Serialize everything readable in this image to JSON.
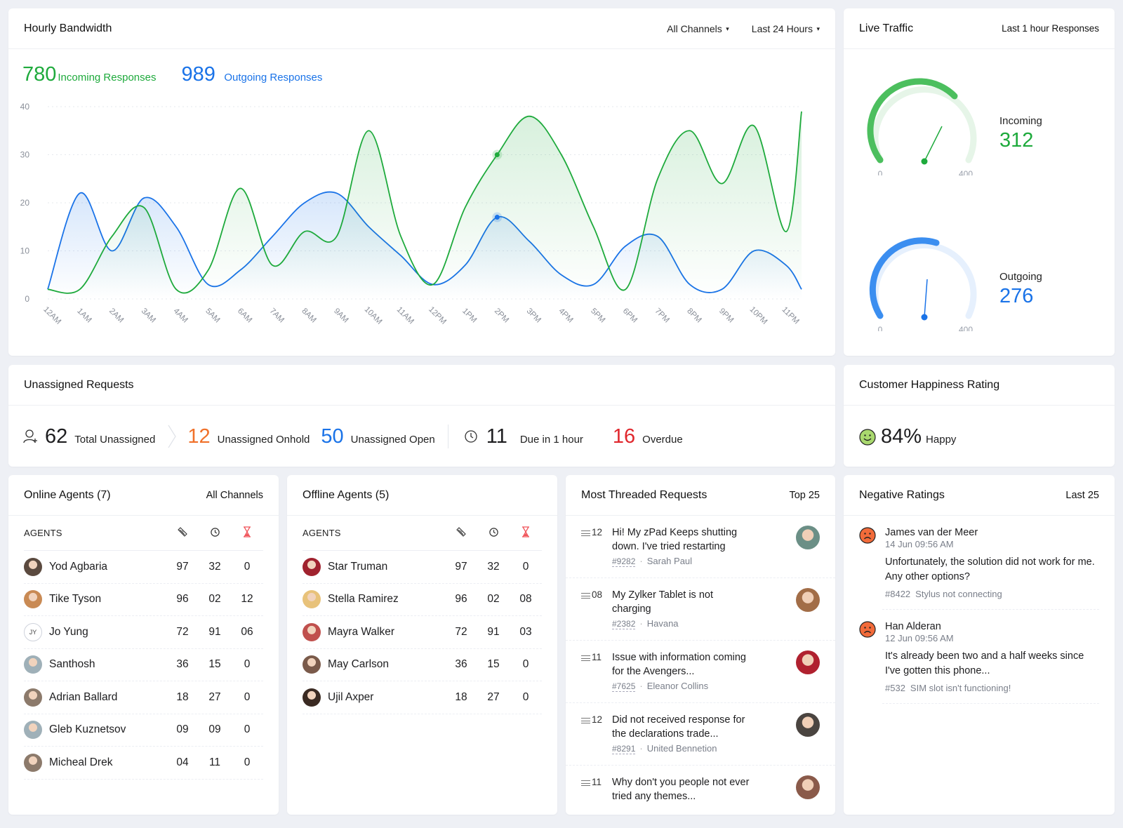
{
  "bandwidth": {
    "title": "Hourly Bandwidth",
    "filters": {
      "channel": "All Channels",
      "range": "Last 24 Hours"
    },
    "incoming": {
      "value": "780",
      "label": "Incoming Responses"
    },
    "outgoing": {
      "value": "989",
      "label": "Outgoing Responses"
    }
  },
  "chart_data": {
    "type": "area",
    "title": "Hourly Bandwidth",
    "xlabel": "",
    "ylabel": "",
    "ylim": [
      0,
      40
    ],
    "yticks": [
      0,
      10,
      20,
      30,
      40
    ],
    "grid": true,
    "categories": [
      "12AM",
      "1AM",
      "2AM",
      "3AM",
      "4AM",
      "5AM",
      "6AM",
      "7AM",
      "8AM",
      "9AM",
      "10AM",
      "11AM",
      "12PM",
      "1PM",
      "2PM",
      "3PM",
      "4PM",
      "5PM",
      "6PM",
      "7PM",
      "8PM",
      "9PM",
      "10PM",
      "11PM"
    ],
    "series": [
      {
        "name": "Incoming Responses",
        "color": "#1eaa3c",
        "values": [
          2,
          2,
          13,
          19,
          2,
          6,
          23,
          7,
          14,
          13,
          35,
          13,
          3,
          19,
          30,
          38,
          30,
          15,
          2,
          25,
          35,
          24,
          36,
          14
        ]
      },
      {
        "name": "Outgoing Responses",
        "color": "#1a73e8",
        "values": [
          2,
          22,
          10,
          21,
          15,
          3,
          6,
          13,
          20,
          22,
          15,
          9,
          3,
          7,
          17,
          12,
          5,
          3,
          11,
          13,
          3,
          2,
          10,
          7
        ]
      }
    ],
    "end_value_incoming": 39,
    "end_value_outgoing": 2,
    "highlight": {
      "x": "2PM",
      "incoming": 30,
      "outgoing": 17
    }
  },
  "live": {
    "title": "Live Traffic",
    "subtitle": "Last 1 hour Responses",
    "incoming": {
      "label": "Incoming",
      "value": "312",
      "min": "0",
      "max": "400"
    },
    "outgoing": {
      "label": "Outgoing",
      "value": "276",
      "min": "0",
      "max": "400"
    }
  },
  "unassigned": {
    "title": "Unassigned Requests",
    "total": {
      "value": "62",
      "label": "Total Unassigned"
    },
    "onhold": {
      "value": "12",
      "label": "Unassigned Onhold"
    },
    "open": {
      "value": "50",
      "label": "Unassigned Open"
    },
    "due": {
      "value": "11",
      "label": "Due in 1 hour"
    },
    "overdue": {
      "value": "16",
      "label": "Overdue"
    }
  },
  "happiness": {
    "title": "Customer Happiness Rating",
    "value": "84%",
    "label": "Happy"
  },
  "online_agents": {
    "title": "Online Agents (7)",
    "filter": "All Channels",
    "col_header": "AGENTS",
    "rows": [
      {
        "name": "Yod Agbaria",
        "a": "97",
        "b": "32",
        "c": "0",
        "avatar": "#5b4a3f"
      },
      {
        "name": "Tike Tyson",
        "a": "96",
        "b": "02",
        "c": "12",
        "avatar": "#c98a54"
      },
      {
        "name": "Jo Yung",
        "a": "72",
        "b": "91",
        "c": "06",
        "initials": "JY"
      },
      {
        "name": "Santhosh",
        "a": "36",
        "b": "15",
        "c": "0",
        "avatar": "#9fb0b8"
      },
      {
        "name": "Adrian Ballard",
        "a": "18",
        "b": "27",
        "c": "0",
        "avatar": "#8c7a6b"
      },
      {
        "name": "Gleb Kuznetsov",
        "a": "09",
        "b": "09",
        "c": "0",
        "avatar": "#9fb0b8"
      },
      {
        "name": "Micheal Drek",
        "a": "04",
        "b": "11",
        "c": "0",
        "avatar": "#8c7a6b"
      }
    ]
  },
  "offline_agents": {
    "title": "Offline Agents (5)",
    "col_header": "AGENTS",
    "rows": [
      {
        "name": "Star Truman",
        "a": "97",
        "b": "32",
        "c": "0",
        "avatar": "#a0222e"
      },
      {
        "name": "Stella Ramirez",
        "a": "96",
        "b": "02",
        "c": "08",
        "avatar": "#e8c27a"
      },
      {
        "name": "Mayra Walker",
        "a": "72",
        "b": "91",
        "c": "03",
        "avatar": "#c0504d"
      },
      {
        "name": "May Carlson",
        "a": "36",
        "b": "15",
        "c": "0",
        "avatar": "#7a5a4a"
      },
      {
        "name": "Ujil Axper",
        "a": "18",
        "b": "27",
        "c": "0",
        "avatar": "#3a2a22"
      }
    ]
  },
  "threaded": {
    "title": "Most Threaded Requests",
    "filter": "Top 25",
    "items": [
      {
        "count": "12",
        "title": "Hi! My zPad Keeps shutting down. I've tried restarting",
        "id": "#9282",
        "contact": "Sarah Paul",
        "avatar": "#6b8f86"
      },
      {
        "count": "08",
        "title": "My Zylker Tablet is not charging",
        "id": "#2382",
        "contact": "Havana",
        "avatar": "#a26d47"
      },
      {
        "count": "11",
        "title": "Issue with information coming for the Avengers...",
        "id": "#7625",
        "contact": "Eleanor Collins",
        "avatar": "#b0212f"
      },
      {
        "count": "12",
        "title": "Did not received response for the declarations trade...",
        "id": "#8291",
        "contact": "United Bennetion",
        "avatar": "#4a4440"
      },
      {
        "count": "11",
        "title": "Why don't you people not ever tried any themes...",
        "id": "",
        "contact": "",
        "avatar": "#8a5a4a"
      }
    ]
  },
  "negative": {
    "title": "Negative Ratings",
    "filter": "Last 25",
    "items": [
      {
        "name": "James van der Meer",
        "date": "14 Jun 09:56 AM",
        "text": "Unfortunately, the solution did not work for me. Any other options?",
        "id": "#8422",
        "subject": "Stylus not connecting"
      },
      {
        "name": "Han Alderan",
        "date": "12 Jun 09:56 AM",
        "text": "It's already been two and a half weeks since I've gotten this phone...",
        "id": "#532",
        "subject": "SIM slot isn't functioning!"
      }
    ]
  },
  "colors": {
    "green": "#1eaa3c",
    "blue": "#1a73e8",
    "orange": "#f0712a",
    "red": "#e0272d",
    "gauge_green": "#4cbf5e",
    "gauge_blue": "#3b8ef0",
    "sad_face": "#f26b3a",
    "happy_face": "#a9d86e"
  }
}
